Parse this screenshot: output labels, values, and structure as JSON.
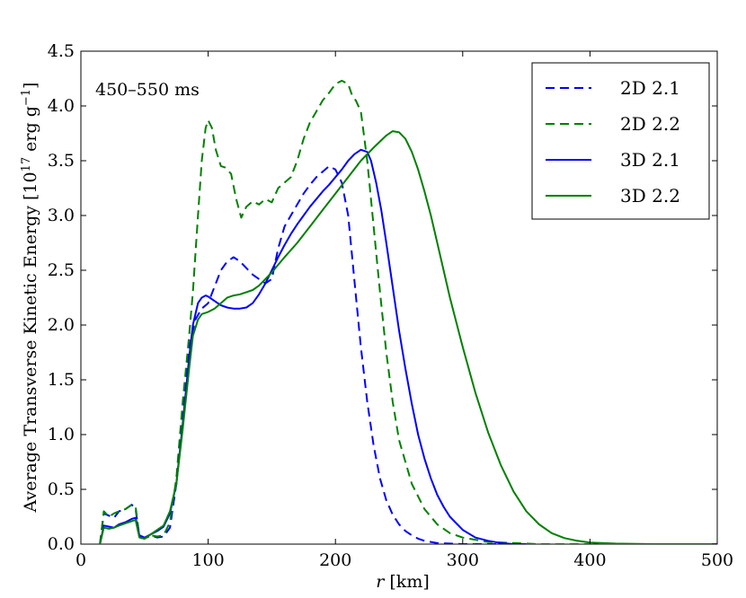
{
  "chart_data": {
    "type": "line",
    "annotation": "450–550 ms",
    "xlabel": "r [km]",
    "xlabel_var": "r",
    "xlabel_unit": "[km]",
    "ylabel": "Average Transverse Kinetic Energy [10^17 erg g^-1]",
    "ylabel_text": "Average Transverse Kinetic Energy [10",
    "ylabel_exp": "17",
    "ylabel_unit": "erg g",
    "ylabel_unit_exp": "−1",
    "ylabel_close": "]",
    "xlim": [
      0,
      500
    ],
    "ylim": [
      0,
      4.5
    ],
    "xticks": [
      0,
      100,
      200,
      300,
      400,
      500
    ],
    "xtick_labels": [
      "0",
      "100",
      "200",
      "300",
      "400",
      "500"
    ],
    "yticks": [
      0,
      0.5,
      1.0,
      1.5,
      2.0,
      2.5,
      3.0,
      3.5,
      4.0,
      4.5
    ],
    "ytick_labels": [
      "0.0",
      "0.5",
      "1.0",
      "1.5",
      "2.0",
      "2.5",
      "3.0",
      "3.5",
      "4.0",
      "4.5"
    ],
    "legend_position": "top-right",
    "series": [
      {
        "name": "2D 2.1",
        "color": "#0000ff",
        "dash": true,
        "x": [
          15,
          18,
          22,
          26,
          30,
          35,
          40,
          43,
          46,
          50,
          55,
          60,
          65,
          70,
          75,
          80,
          85,
          90,
          95,
          100,
          105,
          110,
          115,
          120,
          125,
          130,
          135,
          140,
          145,
          150,
          155,
          160,
          165,
          170,
          175,
          180,
          185,
          190,
          195,
          200,
          205,
          210,
          215,
          220,
          225,
          230,
          235,
          240,
          245,
          250,
          255,
          260,
          265,
          270,
          280,
          290,
          300,
          310,
          320,
          330,
          340,
          350
        ],
        "y": [
          0,
          0.28,
          0.26,
          0.24,
          0.3,
          0.32,
          0.36,
          0.32,
          0.06,
          0.05,
          0.08,
          0.06,
          0.07,
          0.15,
          0.55,
          1.2,
          1.8,
          2.05,
          2.15,
          2.2,
          2.35,
          2.5,
          2.58,
          2.62,
          2.58,
          2.52,
          2.46,
          2.42,
          2.38,
          2.42,
          2.7,
          2.9,
          3.0,
          3.1,
          3.2,
          3.28,
          3.35,
          3.4,
          3.45,
          3.42,
          3.3,
          3.0,
          2.4,
          1.8,
          1.3,
          0.9,
          0.6,
          0.4,
          0.27,
          0.18,
          0.12,
          0.08,
          0.05,
          0.03,
          0.01,
          0.005,
          0,
          0,
          0,
          0,
          0,
          0
        ]
      },
      {
        "name": "2D 2.2",
        "color": "#008000",
        "dash": true,
        "x": [
          15,
          18,
          22,
          26,
          30,
          35,
          40,
          43,
          46,
          50,
          55,
          60,
          65,
          70,
          75,
          80,
          85,
          88,
          92,
          95,
          98,
          100,
          103,
          106,
          110,
          113,
          118,
          122,
          126,
          130,
          135,
          140,
          145,
          150,
          155,
          160,
          165,
          170,
          175,
          180,
          185,
          190,
          195,
          200,
          205,
          210,
          213,
          216,
          220,
          225,
          230,
          235,
          240,
          245,
          250,
          260,
          270,
          280,
          290,
          300,
          320,
          340,
          360,
          380,
          400,
          420
        ],
        "y": [
          0,
          0.3,
          0.25,
          0.28,
          0.3,
          0.32,
          0.36,
          0.34,
          0.07,
          0.05,
          0.08,
          0.07,
          0.08,
          0.2,
          0.6,
          1.3,
          1.9,
          2.3,
          3.0,
          3.5,
          3.8,
          3.87,
          3.8,
          3.6,
          3.45,
          3.44,
          3.38,
          3.15,
          2.98,
          3.08,
          3.13,
          3.1,
          3.15,
          3.12,
          3.25,
          3.3,
          3.35,
          3.5,
          3.7,
          3.85,
          3.95,
          4.05,
          4.12,
          4.2,
          4.23,
          4.2,
          4.1,
          4.05,
          3.95,
          3.5,
          2.9,
          2.3,
          1.75,
          1.3,
          0.95,
          0.55,
          0.32,
          0.18,
          0.1,
          0.06,
          0.02,
          0.01,
          0,
          0,
          0,
          0
        ]
      },
      {
        "name": "3D 2.1",
        "color": "#0000ff",
        "dash": false,
        "x": [
          15,
          18,
          22,
          26,
          30,
          35,
          40,
          43,
          46,
          50,
          55,
          60,
          65,
          70,
          75,
          80,
          85,
          88,
          92,
          95,
          98,
          100,
          105,
          110,
          115,
          120,
          125,
          130,
          135,
          140,
          145,
          150,
          155,
          160,
          165,
          170,
          175,
          180,
          185,
          190,
          195,
          200,
          205,
          210,
          215,
          220,
          225,
          228,
          232,
          236,
          240,
          245,
          250,
          255,
          260,
          265,
          270,
          275,
          280,
          285,
          290,
          300,
          310,
          320,
          330,
          340,
          350
        ],
        "y": [
          0,
          0.17,
          0.16,
          0.15,
          0.18,
          0.2,
          0.23,
          0.24,
          0.08,
          0.06,
          0.09,
          0.12,
          0.16,
          0.28,
          0.55,
          1.1,
          1.7,
          2.0,
          2.2,
          2.25,
          2.27,
          2.26,
          2.22,
          2.18,
          2.16,
          2.15,
          2.15,
          2.16,
          2.2,
          2.28,
          2.38,
          2.5,
          2.62,
          2.73,
          2.83,
          2.92,
          3.0,
          3.08,
          3.15,
          3.22,
          3.28,
          3.35,
          3.42,
          3.5,
          3.56,
          3.6,
          3.58,
          3.5,
          3.3,
          3.05,
          2.75,
          2.35,
          1.95,
          1.6,
          1.28,
          1.0,
          0.78,
          0.6,
          0.45,
          0.34,
          0.25,
          0.13,
          0.06,
          0.03,
          0.01,
          0,
          0
        ]
      },
      {
        "name": "3D 2.2",
        "color": "#008000",
        "dash": false,
        "x": [
          15,
          18,
          22,
          26,
          30,
          35,
          40,
          43,
          46,
          50,
          55,
          60,
          65,
          70,
          75,
          80,
          85,
          88,
          92,
          95,
          100,
          105,
          110,
          115,
          120,
          125,
          130,
          135,
          140,
          145,
          150,
          160,
          170,
          180,
          190,
          200,
          210,
          220,
          230,
          240,
          245,
          250,
          255,
          260,
          265,
          270,
          275,
          280,
          290,
          300,
          310,
          320,
          330,
          340,
          350,
          360,
          370,
          380,
          390,
          400,
          420,
          450,
          500
        ],
        "y": [
          0,
          0.15,
          0.14,
          0.15,
          0.17,
          0.19,
          0.21,
          0.22,
          0.06,
          0.05,
          0.09,
          0.13,
          0.17,
          0.3,
          0.55,
          1.05,
          1.6,
          1.9,
          2.05,
          2.1,
          2.12,
          2.15,
          2.2,
          2.25,
          2.27,
          2.28,
          2.3,
          2.32,
          2.36,
          2.42,
          2.48,
          2.62,
          2.75,
          2.9,
          3.05,
          3.2,
          3.35,
          3.5,
          3.62,
          3.73,
          3.77,
          3.76,
          3.7,
          3.58,
          3.42,
          3.22,
          3.0,
          2.75,
          2.25,
          1.8,
          1.38,
          1.02,
          0.72,
          0.48,
          0.3,
          0.18,
          0.1,
          0.055,
          0.03,
          0.015,
          0.005,
          0,
          0
        ]
      }
    ]
  }
}
